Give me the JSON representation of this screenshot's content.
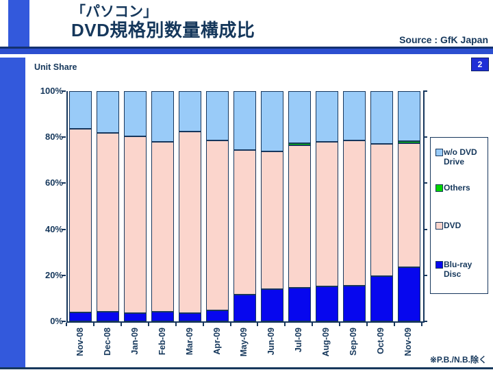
{
  "header": {
    "title_line1": "「パソコン」",
    "title_line2": "DVD規格別数量構成比",
    "source": "Source : GfK Japan",
    "page_number": "2"
  },
  "chart": {
    "unit_label": "Unit Share",
    "note": "※P.B./N.B.除く"
  },
  "colors": {
    "navy_text": "#15375B",
    "bar_border": "#16365C",
    "accent_royal_blue": "#3359DC",
    "blu_ray": "#0707EE",
    "dvd": "#FBD5CC",
    "others": "#00D400",
    "wo_dvd_drive": "#99CBF8"
  },
  "chart_data": {
    "type": "bar",
    "stacked": true,
    "unit": "percent",
    "title": "「パソコン」DVD規格別数量構成比",
    "ylabel": "Unit Share",
    "ylim": [
      0,
      100
    ],
    "yticks": [
      "0%",
      "20%",
      "40%",
      "60%",
      "80%",
      "100%"
    ],
    "grid": false,
    "legend_position": "right",
    "categories": [
      "Nov-08",
      "Dec-08",
      "Jan-09",
      "Feb-09",
      "Mar-09",
      "Apr-09",
      "May-09",
      "Jun-09",
      "Jul-09",
      "Aug-09",
      "Sep-09",
      "Oct-09",
      "Nov-09"
    ],
    "series": [
      {
        "name": "Blu-ray Disc",
        "color": "#0707EE",
        "labeled": true,
        "values": [
          3.9,
          4.1,
          3.6,
          4.1,
          3.5,
          4.7,
          11.7,
          14.1,
          14.7,
          15.1,
          15.5,
          19.6,
          23.6
        ]
      },
      {
        "name": "DVD",
        "color": "#FBD5CC",
        "labeled": false,
        "values": [
          79.8,
          77.7,
          76.7,
          74.0,
          78.9,
          73.8,
          62.6,
          59.7,
          61.9,
          63.0,
          63.0,
          57.6,
          53.9
        ]
      },
      {
        "name": "Others",
        "color": "#00D400",
        "labeled": false,
        "values": [
          0,
          0,
          0,
          0,
          0,
          0,
          0,
          0,
          0.8,
          0,
          0,
          0,
          0.8
        ]
      },
      {
        "name": "w/o DVD Drive",
        "color": "#99CBF8",
        "labeled": false,
        "values": [
          16.3,
          18.2,
          19.7,
          21.9,
          17.6,
          21.5,
          25.7,
          26.2,
          22.6,
          21.9,
          21.5,
          22.8,
          21.7
        ]
      }
    ],
    "legend": [
      {
        "lines": [
          "w/o DVD",
          "Drive"
        ],
        "color": "#99CBF8"
      },
      {
        "lines": [
          "Others"
        ],
        "color": "#00D400"
      },
      {
        "lines": [
          "DVD"
        ],
        "color": "#FBD5CC"
      },
      {
        "lines": [
          "Blu-ray",
          "Disc"
        ],
        "color": "#0707EE"
      }
    ]
  }
}
